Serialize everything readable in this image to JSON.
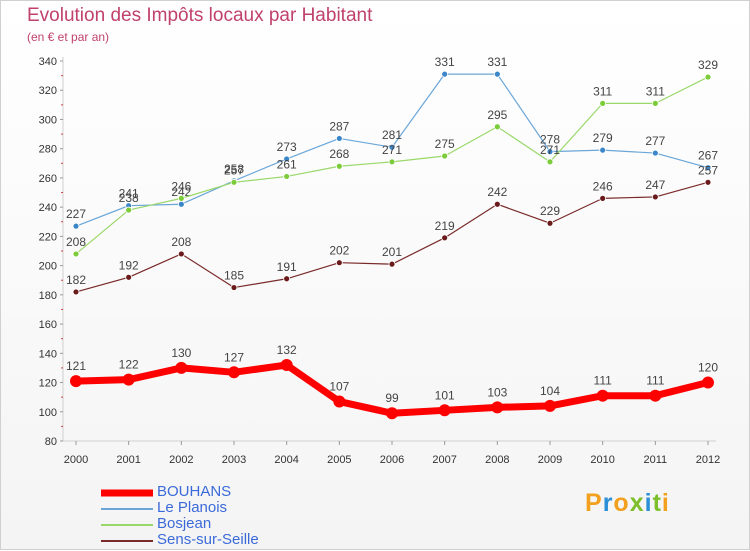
{
  "title": "Evolution des Impôts locaux par Habitant",
  "subtitle": "(en € et par an)",
  "brand": {
    "letters": [
      "P",
      "r",
      "o",
      "x",
      "i",
      "t",
      "i"
    ],
    "colors": [
      "#f2a01e",
      "#2a8fd6",
      "#f2a01e",
      "#7cbf2a",
      "#2a8fd6",
      "#7cbf2a",
      "#f2a01e"
    ]
  },
  "chart_data": {
    "type": "line",
    "x": [
      "2000",
      "2001",
      "2002",
      "2003",
      "2004",
      "2005",
      "2006",
      "2007",
      "2008",
      "2009",
      "2010",
      "2011",
      "2012"
    ],
    "ylim": [
      80,
      340
    ],
    "yticks": [
      80,
      100,
      120,
      140,
      160,
      180,
      200,
      220,
      240,
      260,
      280,
      300,
      320,
      340
    ],
    "grid": false,
    "series": [
      {
        "name": "BOUHANS",
        "color": "#ff0000",
        "width": 7,
        "marker_r": 6,
        "marker_color": "#ff0000",
        "values": [
          121,
          122,
          130,
          127,
          132,
          107,
          99,
          101,
          103,
          104,
          111,
          111,
          120
        ]
      },
      {
        "name": "Le Planois",
        "color": "#6aa6d8",
        "width": 1.2,
        "marker_r": 3,
        "marker_color": "#3a86c8",
        "values": [
          227,
          241,
          242,
          258,
          273,
          287,
          281,
          331,
          331,
          278,
          279,
          277,
          267
        ]
      },
      {
        "name": "Bosjean",
        "color": "#9ad86a",
        "width": 1.2,
        "marker_r": 3,
        "marker_color": "#7ccc3a",
        "values": [
          208,
          238,
          246,
          257,
          261,
          268,
          271,
          275,
          295,
          271,
          311,
          311,
          329
        ]
      },
      {
        "name": "Sens-sur-Seille",
        "color": "#7a2a2a",
        "width": 1.2,
        "marker_r": 3,
        "marker_color": "#6a1a1a",
        "values": [
          182,
          192,
          208,
          185,
          191,
          202,
          201,
          219,
          242,
          229,
          246,
          247,
          257
        ]
      }
    ]
  }
}
